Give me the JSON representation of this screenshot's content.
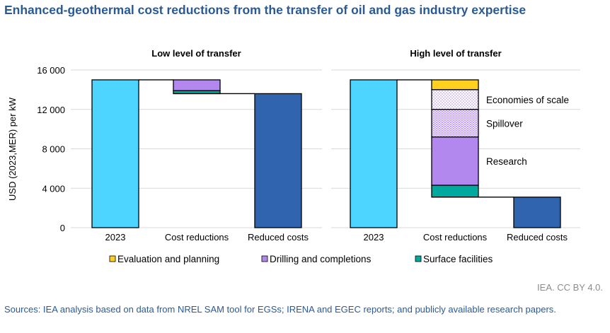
{
  "title": "Enhanced-geothermal cost reductions from the transfer of oil and gas industry expertise",
  "credit": "IEA. CC BY 4.0.",
  "sources": "Sources: IEA analysis based on data from NREL SAM tool for EGSs; IRENA and EGEC reports; and publicly available research papers.",
  "colors": {
    "base": "#4dd4ff",
    "reduced": "#3064ae",
    "evaluation": "#ffd020",
    "drilling": "#b388ee",
    "surface": "#00a99d",
    "grid": "#d9d9d9"
  },
  "chart_data": [
    {
      "type": "bar",
      "subtype": "waterfall",
      "title": "Low level of transfer",
      "ylabel": "USD (2023,MER) per kW",
      "ylim": [
        0,
        16000
      ],
      "yticks": [
        0,
        4000,
        8000,
        12000,
        16000
      ],
      "ytick_labels": [
        "0",
        "4 000",
        "8 000",
        "12 000",
        "16 000"
      ],
      "categories": [
        "2023",
        "Cost reductions",
        "Reduced costs"
      ],
      "start": 15000,
      "end": 13600,
      "reductions": [
        {
          "name": "Drilling and completions",
          "value": 1100,
          "color_key": "drilling",
          "pattern": "none"
        },
        {
          "name": "Surface facilities",
          "value": 300,
          "color_key": "surface",
          "pattern": "none"
        }
      ]
    },
    {
      "type": "bar",
      "subtype": "waterfall",
      "title": "High level of transfer",
      "ylim": [
        0,
        16000
      ],
      "categories": [
        "2023",
        "Cost reductions",
        "Reduced costs"
      ],
      "start": 15000,
      "end": 3100,
      "reductions": [
        {
          "name": "Evaluation and planning",
          "value": 1000,
          "color_key": "evaluation",
          "pattern": "none"
        },
        {
          "name": "Economies of scale",
          "value": 2000,
          "color_key": "drilling",
          "pattern": "dots",
          "label": "Economies of scale"
        },
        {
          "name": "Spillover",
          "value": 2800,
          "color_key": "drilling",
          "pattern": "dense",
          "label": "Spillover"
        },
        {
          "name": "Research",
          "value": 4900,
          "color_key": "drilling",
          "pattern": "none",
          "label": "Research"
        },
        {
          "name": "Surface facilities",
          "value": 1200,
          "color_key": "surface",
          "pattern": "none"
        }
      ]
    }
  ],
  "legend": [
    {
      "label": "Evaluation and planning",
      "color_key": "evaluation"
    },
    {
      "label": "Drilling and completions",
      "color_key": "drilling"
    },
    {
      "label": "Surface facilities",
      "color_key": "surface"
    }
  ]
}
